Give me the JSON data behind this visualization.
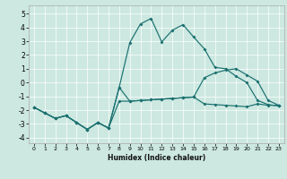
{
  "xlabel": "Humidex (Indice chaleur)",
  "xlim": [
    -0.5,
    23.5
  ],
  "ylim": [
    -4.4,
    5.6
  ],
  "yticks": [
    -4,
    -3,
    -2,
    -1,
    0,
    1,
    2,
    3,
    4,
    5
  ],
  "xticks": [
    0,
    1,
    2,
    3,
    4,
    5,
    6,
    7,
    8,
    9,
    10,
    11,
    12,
    13,
    14,
    15,
    16,
    17,
    18,
    19,
    20,
    21,
    22,
    23
  ],
  "background_color": "#cce8e0",
  "grid_color": "#ffffff",
  "line_color": "#1a7070",
  "line1_x": [
    0,
    1,
    2,
    3,
    4,
    5,
    6,
    7,
    8,
    9,
    10,
    11,
    12,
    13,
    14,
    15,
    16,
    17,
    18,
    19,
    20,
    21,
    22,
    23
  ],
  "line1_y": [
    -1.8,
    -2.2,
    -2.6,
    -2.4,
    -2.9,
    -3.4,
    -2.9,
    -3.3,
    -0.35,
    2.9,
    4.25,
    4.65,
    2.95,
    3.8,
    4.2,
    3.3,
    2.45,
    1.1,
    1.0,
    0.45,
    0.0,
    -1.3,
    -1.6,
    -1.7
  ],
  "line2_x": [
    0,
    1,
    2,
    3,
    4,
    5,
    6,
    7,
    8,
    9,
    10,
    11,
    12,
    13,
    14,
    15,
    16,
    17,
    18,
    19,
    20,
    21,
    22,
    23
  ],
  "line2_y": [
    -1.8,
    -2.2,
    -2.6,
    -2.4,
    -2.9,
    -3.4,
    -2.9,
    -3.3,
    -1.35,
    -1.35,
    -1.3,
    -1.25,
    -1.2,
    -1.15,
    -1.1,
    -1.05,
    -1.55,
    -1.6,
    -1.65,
    -1.7,
    -1.75,
    -1.55,
    -1.65,
    -1.65
  ],
  "line3_x": [
    0,
    1,
    2,
    3,
    4,
    5,
    6,
    7,
    8,
    9,
    10,
    11,
    12,
    13,
    14,
    15,
    16,
    17,
    18,
    19,
    20,
    21,
    22,
    23
  ],
  "line3_y": [
    -1.8,
    -2.2,
    -2.6,
    -2.4,
    -2.9,
    -3.4,
    -2.9,
    -3.3,
    -0.35,
    -1.35,
    -1.3,
    -1.25,
    -1.2,
    -1.15,
    -1.1,
    -1.05,
    0.35,
    0.7,
    0.9,
    1.0,
    0.55,
    0.1,
    -1.3,
    -1.65
  ]
}
